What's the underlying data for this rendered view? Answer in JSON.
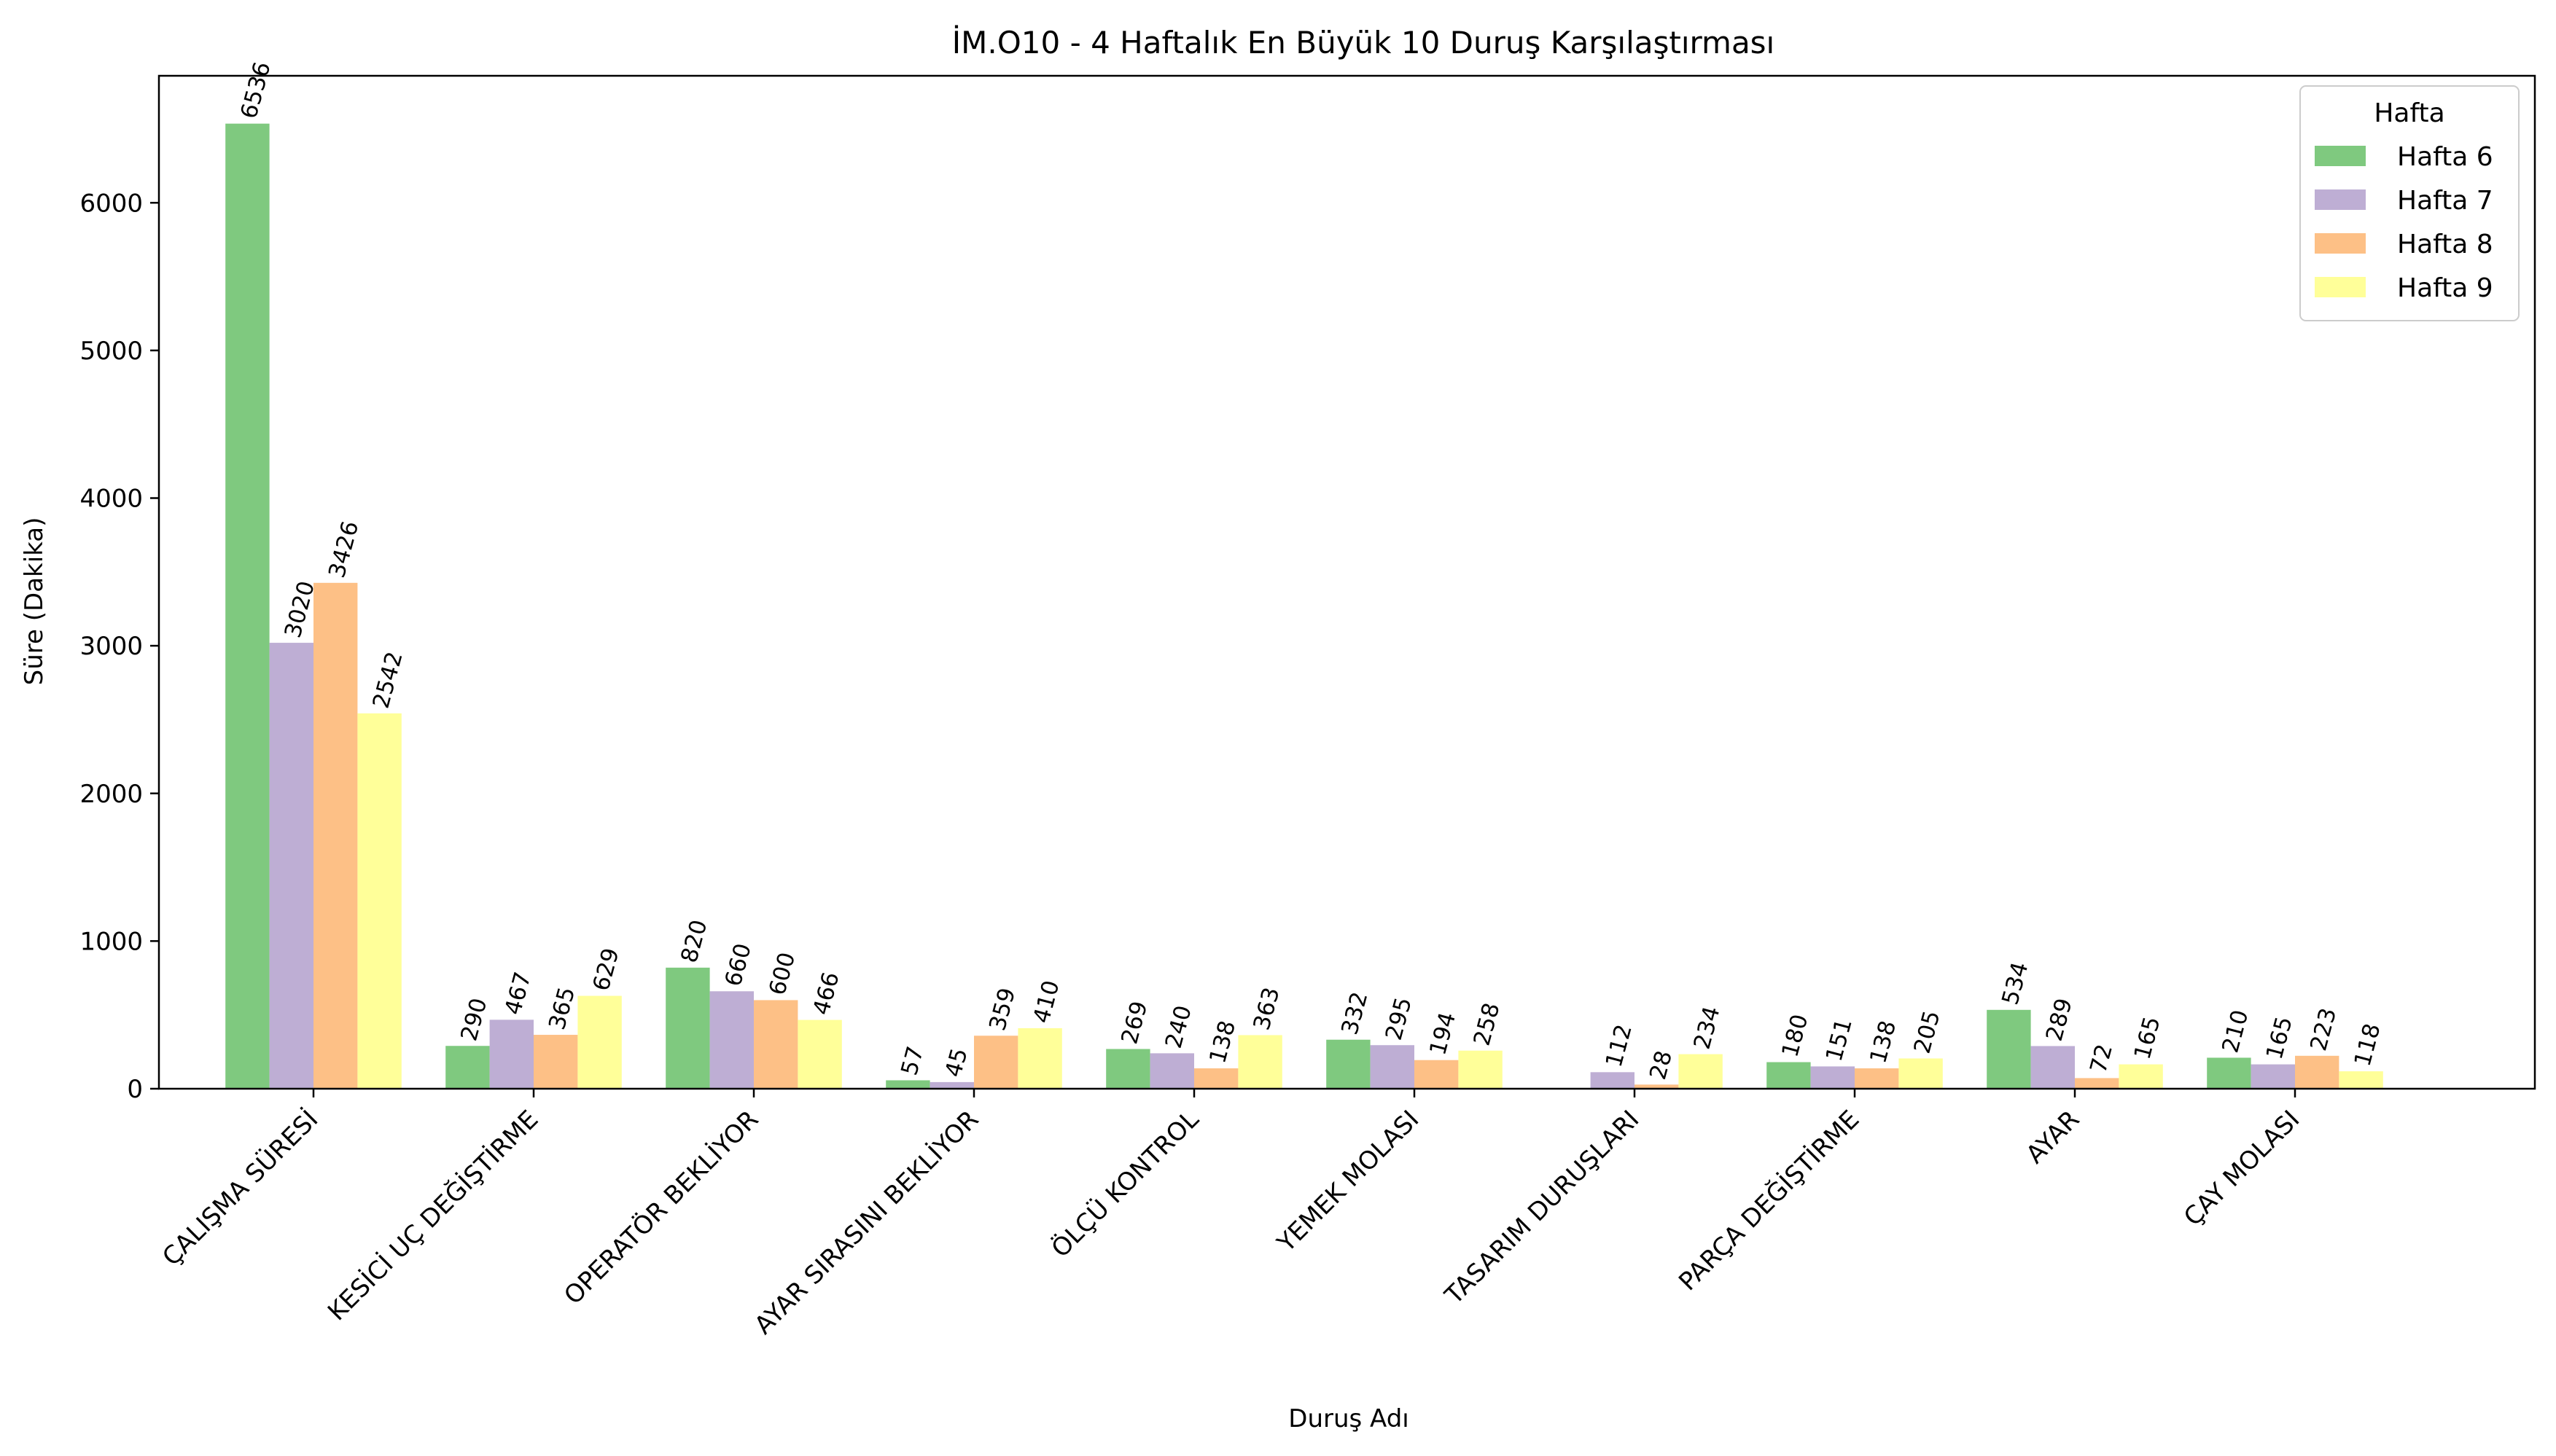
{
  "chart_data": {
    "type": "bar",
    "title": "İM.O10 - 4 Haftalık En Büyük 10 Duruş Karşılaştırması",
    "xlabel": "Duruş Adı",
    "ylabel": "Süre (Dakika)",
    "ylim": [
      0,
      6860
    ],
    "yticks": [
      0,
      1000,
      2000,
      3000,
      4000,
      5000,
      6000
    ],
    "grid": false,
    "legend": {
      "title": "Hafta",
      "placement": "top-right"
    },
    "categories": [
      "ÇALIŞMA SÜRESİ",
      "KESİCİ UÇ DEĞİŞTİRME",
      "OPERATÖR BEKLİYOR",
      "AYAR SIRASINI BEKLİYOR",
      "ÖLÇÜ KONTROL",
      "YEMEK MOLASI",
      "TASARIM DURUŞLARI",
      "PARÇA DEĞİŞTİRME",
      "AYAR",
      "ÇAY MOLASI"
    ],
    "series": [
      {
        "name": "Hafta 6",
        "color": "#7fc97f",
        "values": [
          6536,
          290,
          820,
          57,
          269,
          332,
          null,
          180,
          534,
          210
        ]
      },
      {
        "name": "Hafta 7",
        "color": "#beaed4",
        "values": [
          3020,
          467,
          660,
          45,
          240,
          295,
          112,
          151,
          289,
          165
        ]
      },
      {
        "name": "Hafta 8",
        "color": "#fdc086",
        "values": [
          3426,
          365,
          600,
          359,
          138,
          194,
          28,
          138,
          72,
          223
        ]
      },
      {
        "name": "Hafta 9",
        "color": "#ffff99",
        "values": [
          2542,
          629,
          466,
          410,
          363,
          258,
          234,
          205,
          165,
          118
        ]
      }
    ]
  }
}
